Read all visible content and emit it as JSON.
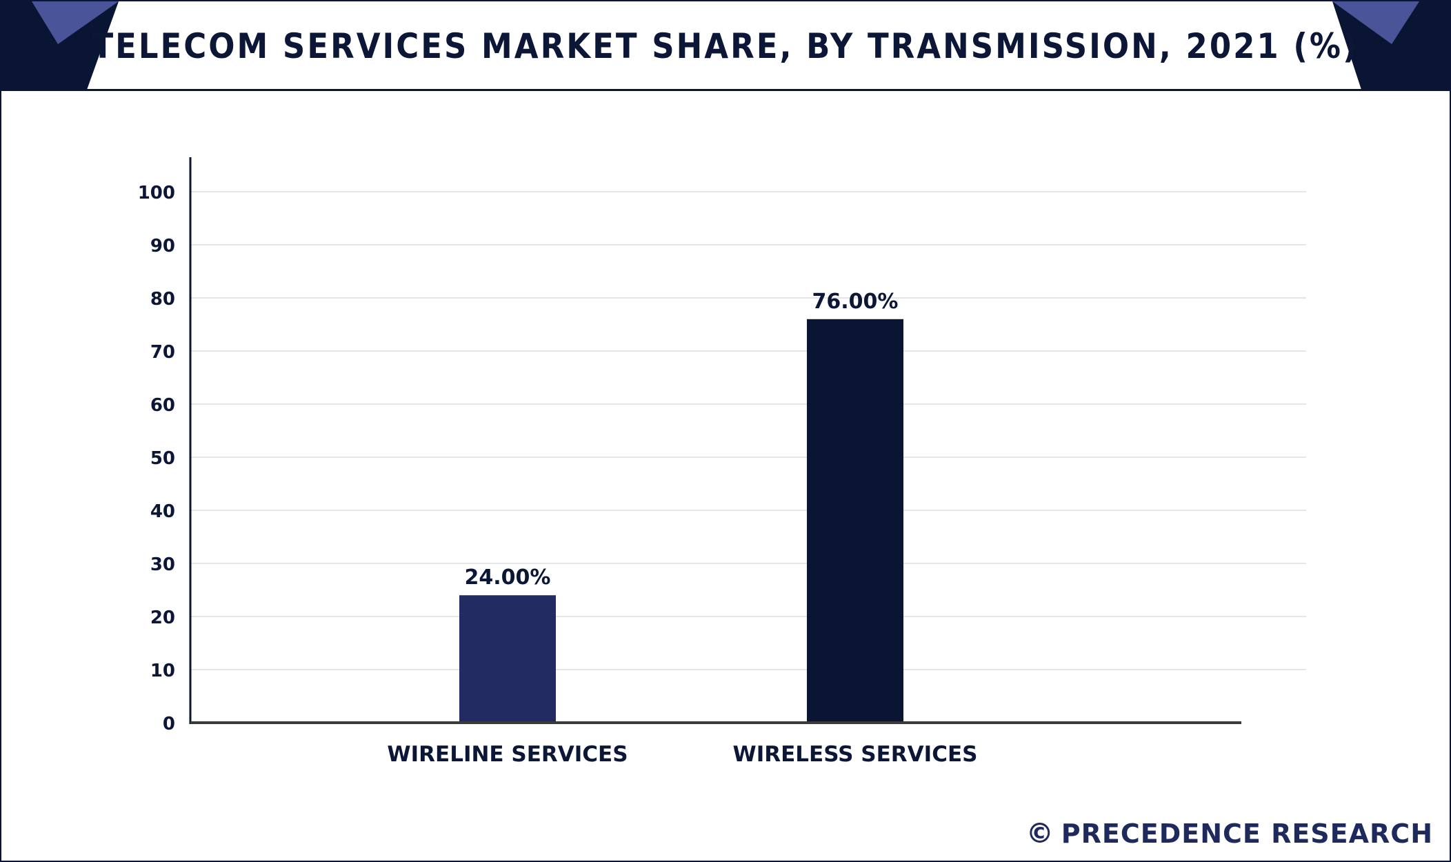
{
  "title": "TELECOM SERVICES MARKET SHARE, BY TRANSMISSION, 2021 (%)",
  "colors": {
    "navy_dark": "#0a1433",
    "navy": "#232b63",
    "accent_triangle": "#4a5499",
    "grid": "#e6e6e6",
    "axis": "#3a3a3a",
    "text": "#0c1636"
  },
  "watermark": {
    "symbol": "©",
    "text": "PRECEDENCE RESEARCH"
  },
  "chart_data": {
    "type": "bar",
    "categories": [
      "WIRELINE SERVICES",
      "WIRELESS SERVICES"
    ],
    "values": [
      24.0,
      76.0
    ],
    "data_labels": [
      "24.00%",
      "76.00%"
    ],
    "bar_colors": [
      "#232b63",
      "#0a1433"
    ],
    "title": "TELECOM SERVICES MARKET SHARE, BY TRANSMISSION, 2021 (%)",
    "xlabel": "",
    "ylabel": "",
    "ylim": [
      0,
      100
    ],
    "yticks": [
      0,
      10,
      20,
      30,
      40,
      50,
      60,
      70,
      80,
      90,
      100
    ],
    "grid": true,
    "legend": "none"
  }
}
